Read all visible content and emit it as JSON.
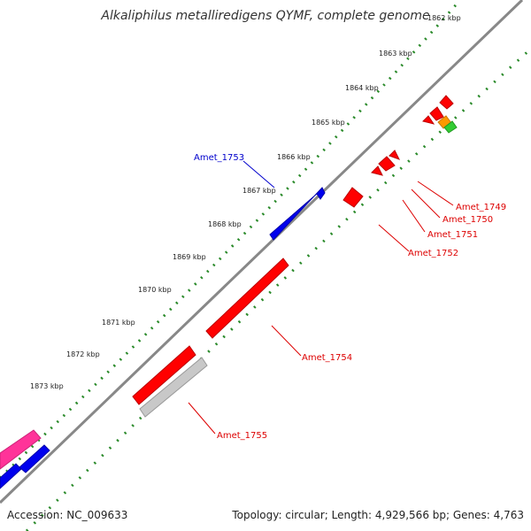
{
  "title": "Alkaliphilus metalliredigens QYMF, complete genome",
  "footer": {
    "accession": "Accession: NC_009633",
    "summary": "Topology: circular; Length: 4,929,566 bp; Genes: 4,763"
  },
  "scale": {
    "unit": "kbp",
    "ticks": [
      "1862 kbp",
      "1863 kbp",
      "1864 kbp",
      "1865 kbp",
      "1866 kbp",
      "1867 kbp",
      "1868 kbp",
      "1869 kbp",
      "1870 kbp",
      "1871 kbp",
      "1872 kbp",
      "1873 kbp"
    ]
  },
  "genes": [
    {
      "label": "Amet_1749",
      "color": "#dd0000"
    },
    {
      "label": "Amet_1750",
      "color": "#dd0000"
    },
    {
      "label": "Amet_1751",
      "color": "#dd0000"
    },
    {
      "label": "Amet_1752",
      "color": "#dd0000"
    },
    {
      "label": "Amet_1753",
      "color": "#0000cc"
    },
    {
      "label": "Amet_1754",
      "color": "#dd0000"
    },
    {
      "label": "Amet_1755",
      "color": "#dd0000"
    }
  ],
  "colors": {
    "backbone": "#888888",
    "ruler": "#2a8a2a",
    "forward_gene": "#0000ee",
    "reverse_gene": "#ff0000",
    "pseudo_gene": "#c8c8c8",
    "rna": "#ff3399",
    "orange": "#ff9900",
    "green": "#33cc33"
  }
}
